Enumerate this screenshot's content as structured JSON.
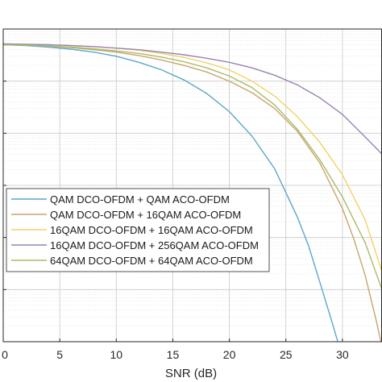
{
  "chart_data": {
    "type": "line",
    "xlabel": "SNR (dB)",
    "ylabel": "",
    "title": "",
    "xlim": [
      0,
      33.5
    ],
    "x_ticks": [
      0,
      5,
      10,
      15,
      20,
      25,
      30
    ],
    "y_scale": "log",
    "ylim": [
      1e-06,
      1
    ],
    "grid": true,
    "legend_position": "lower-left",
    "series": [
      {
        "name": "QAM DCO-OFDM + QAM ACO-OFDM",
        "color": "#5aa7c9",
        "x": [
          0,
          2,
          4,
          6,
          8,
          10,
          12,
          14,
          16,
          18,
          20,
          22,
          24,
          26,
          27,
          28,
          29,
          30
        ],
        "y": [
          0.5,
          0.48,
          0.45,
          0.41,
          0.36,
          0.3,
          0.23,
          0.165,
          0.105,
          0.058,
          0.026,
          0.0088,
          0.0021,
          0.00025,
          7e-05,
          1.4e-05,
          2.7e-06,
          5e-07
        ]
      },
      {
        "name": "QAM DCO-OFDM + 16QAM ACO-OFDM",
        "color": "#c9a46d",
        "x": [
          0,
          2,
          4,
          6,
          8,
          10,
          12,
          14,
          16,
          18,
          20,
          22,
          24,
          26,
          28,
          30,
          31,
          32,
          33,
          33.5
        ],
        "y": [
          0.5,
          0.49,
          0.47,
          0.44,
          0.4,
          0.36,
          0.31,
          0.255,
          0.2,
          0.15,
          0.1,
          0.06,
          0.03,
          0.011,
          0.0027,
          0.00036,
          9.5e-05,
          1.9e-05,
          2.5e-06,
          8e-07
        ]
      },
      {
        "name": "16QAM DCO-OFDM + 16QAM ACO-OFDM",
        "color": "#f2d268",
        "x": [
          0,
          2,
          4,
          6,
          8,
          10,
          12,
          14,
          16,
          18,
          20,
          22,
          24,
          26,
          28,
          30,
          32,
          33.5
        ],
        "y": [
          0.52,
          0.51,
          0.5,
          0.48,
          0.46,
          0.43,
          0.39,
          0.34,
          0.285,
          0.225,
          0.165,
          0.1,
          0.052,
          0.021,
          0.0067,
          0.0016,
          0.00022,
          2.2e-05
        ]
      },
      {
        "name": "16QAM DCO-OFDM + 256QAM ACO-OFDM",
        "color": "#9882b5",
        "x": [
          0,
          2,
          4,
          6,
          8,
          10,
          12,
          14,
          16,
          18,
          20,
          22,
          24,
          26,
          28,
          30,
          32,
          33.5
        ],
        "y": [
          0.52,
          0.51,
          0.5,
          0.48,
          0.46,
          0.43,
          0.4,
          0.36,
          0.32,
          0.275,
          0.23,
          0.18,
          0.13,
          0.085,
          0.048,
          0.023,
          0.0085,
          0.004
        ]
      },
      {
        "name": "64QAM DCO-OFDM + 64QAM ACO-OFDM",
        "color": "#a8bc66",
        "x": [
          0,
          2,
          4,
          6,
          8,
          10,
          12,
          14,
          16,
          18,
          20,
          22,
          24,
          26,
          28,
          30,
          32,
          33.5
        ],
        "y": [
          0.5,
          0.49,
          0.47,
          0.45,
          0.42,
          0.38,
          0.34,
          0.29,
          0.235,
          0.18,
          0.125,
          0.075,
          0.035,
          0.012,
          0.0031,
          0.0006,
          8e-05,
          1e-05
        ]
      }
    ]
  }
}
